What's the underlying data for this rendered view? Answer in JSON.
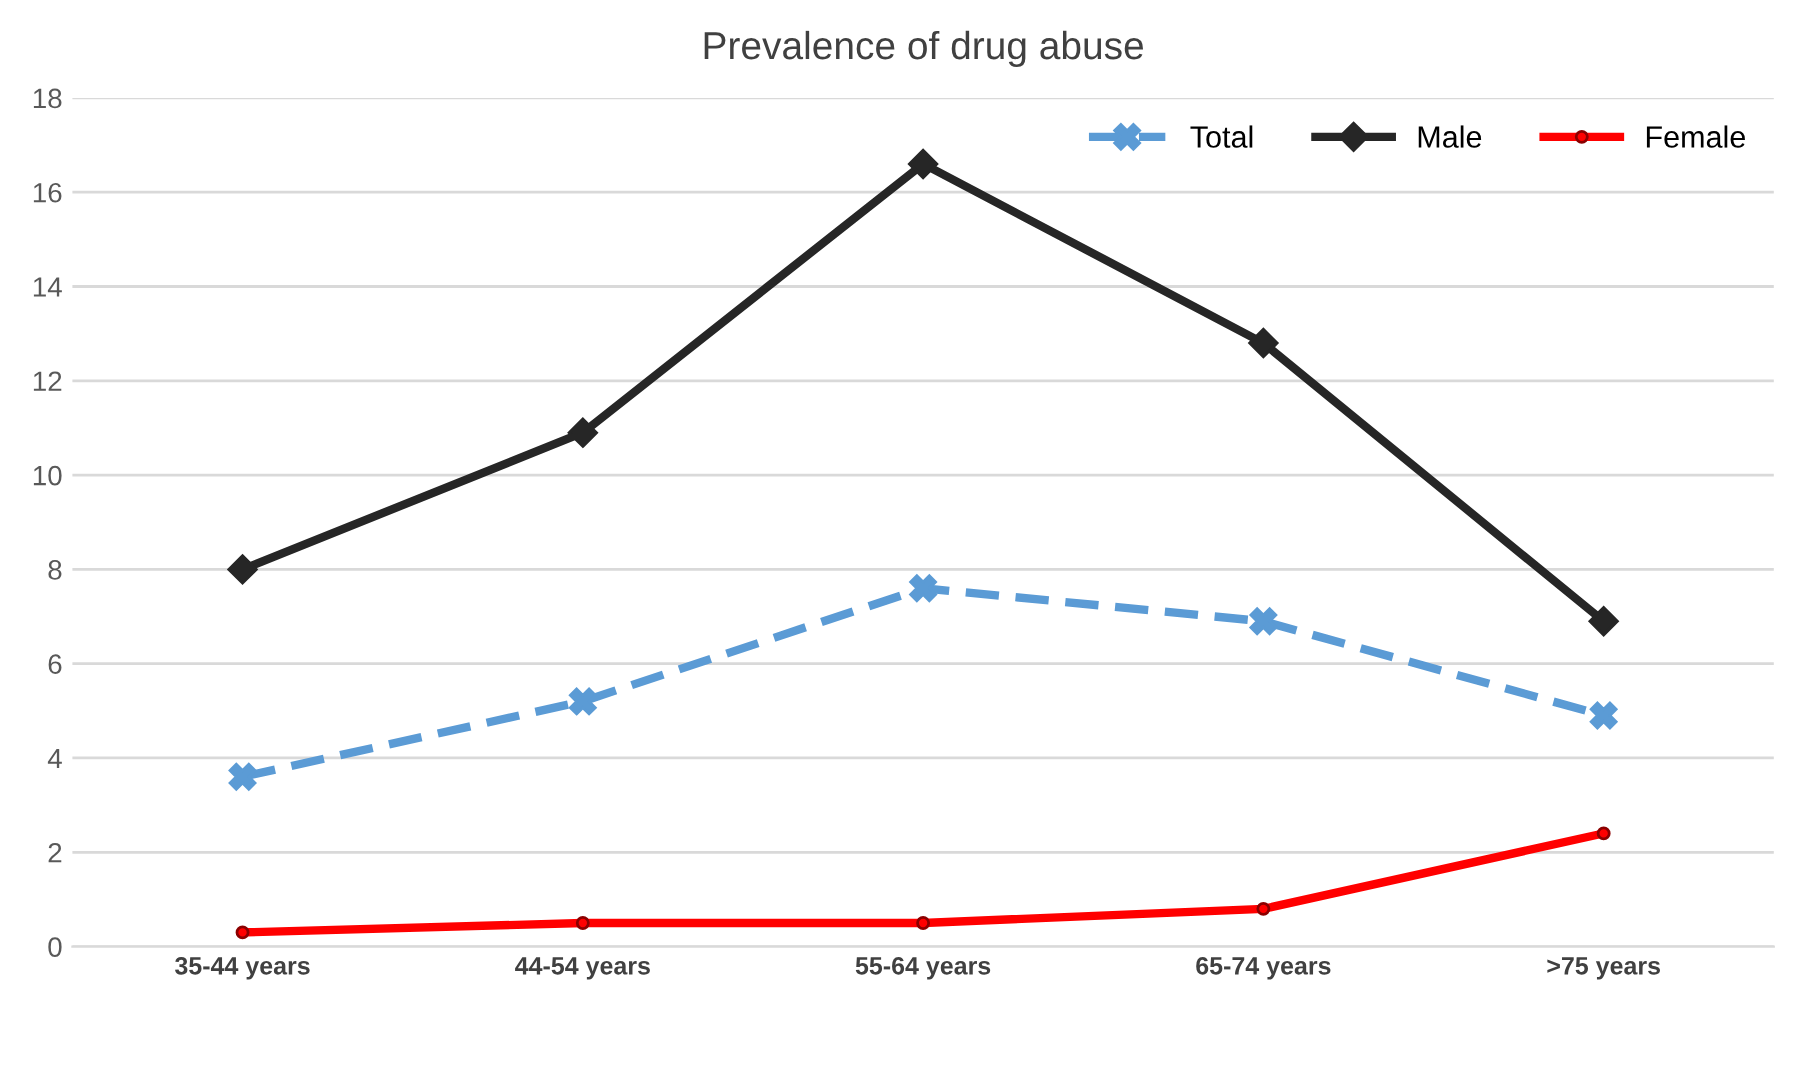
{
  "chart_data": {
    "type": "line",
    "title": "Prevalence of drug abuse",
    "categories": [
      "35-44 years",
      "44-54 years",
      "55-64 years",
      "65-74 years",
      ">75 years"
    ],
    "series": [
      {
        "name": "Total",
        "color": "#5b9bd5",
        "values": [
          3.6,
          5.2,
          7.6,
          6.9,
          4.9
        ],
        "marker": "cross",
        "line_style": "dashed"
      },
      {
        "name": "Male",
        "color": "#262626",
        "values": [
          8.0,
          10.9,
          16.6,
          12.8,
          6.9
        ],
        "marker": "diamond",
        "line_style": "solid"
      },
      {
        "name": "Female",
        "color": "#ff0000",
        "values": [
          0.3,
          0.5,
          0.5,
          0.8,
          2.4
        ],
        "marker": "circle",
        "line_style": "solid"
      }
    ],
    "ylim": [
      0,
      18
    ],
    "yticks": [
      0,
      2,
      4,
      6,
      8,
      10,
      12,
      14,
      16,
      18
    ],
    "grid": "y",
    "legend": "top right"
  }
}
